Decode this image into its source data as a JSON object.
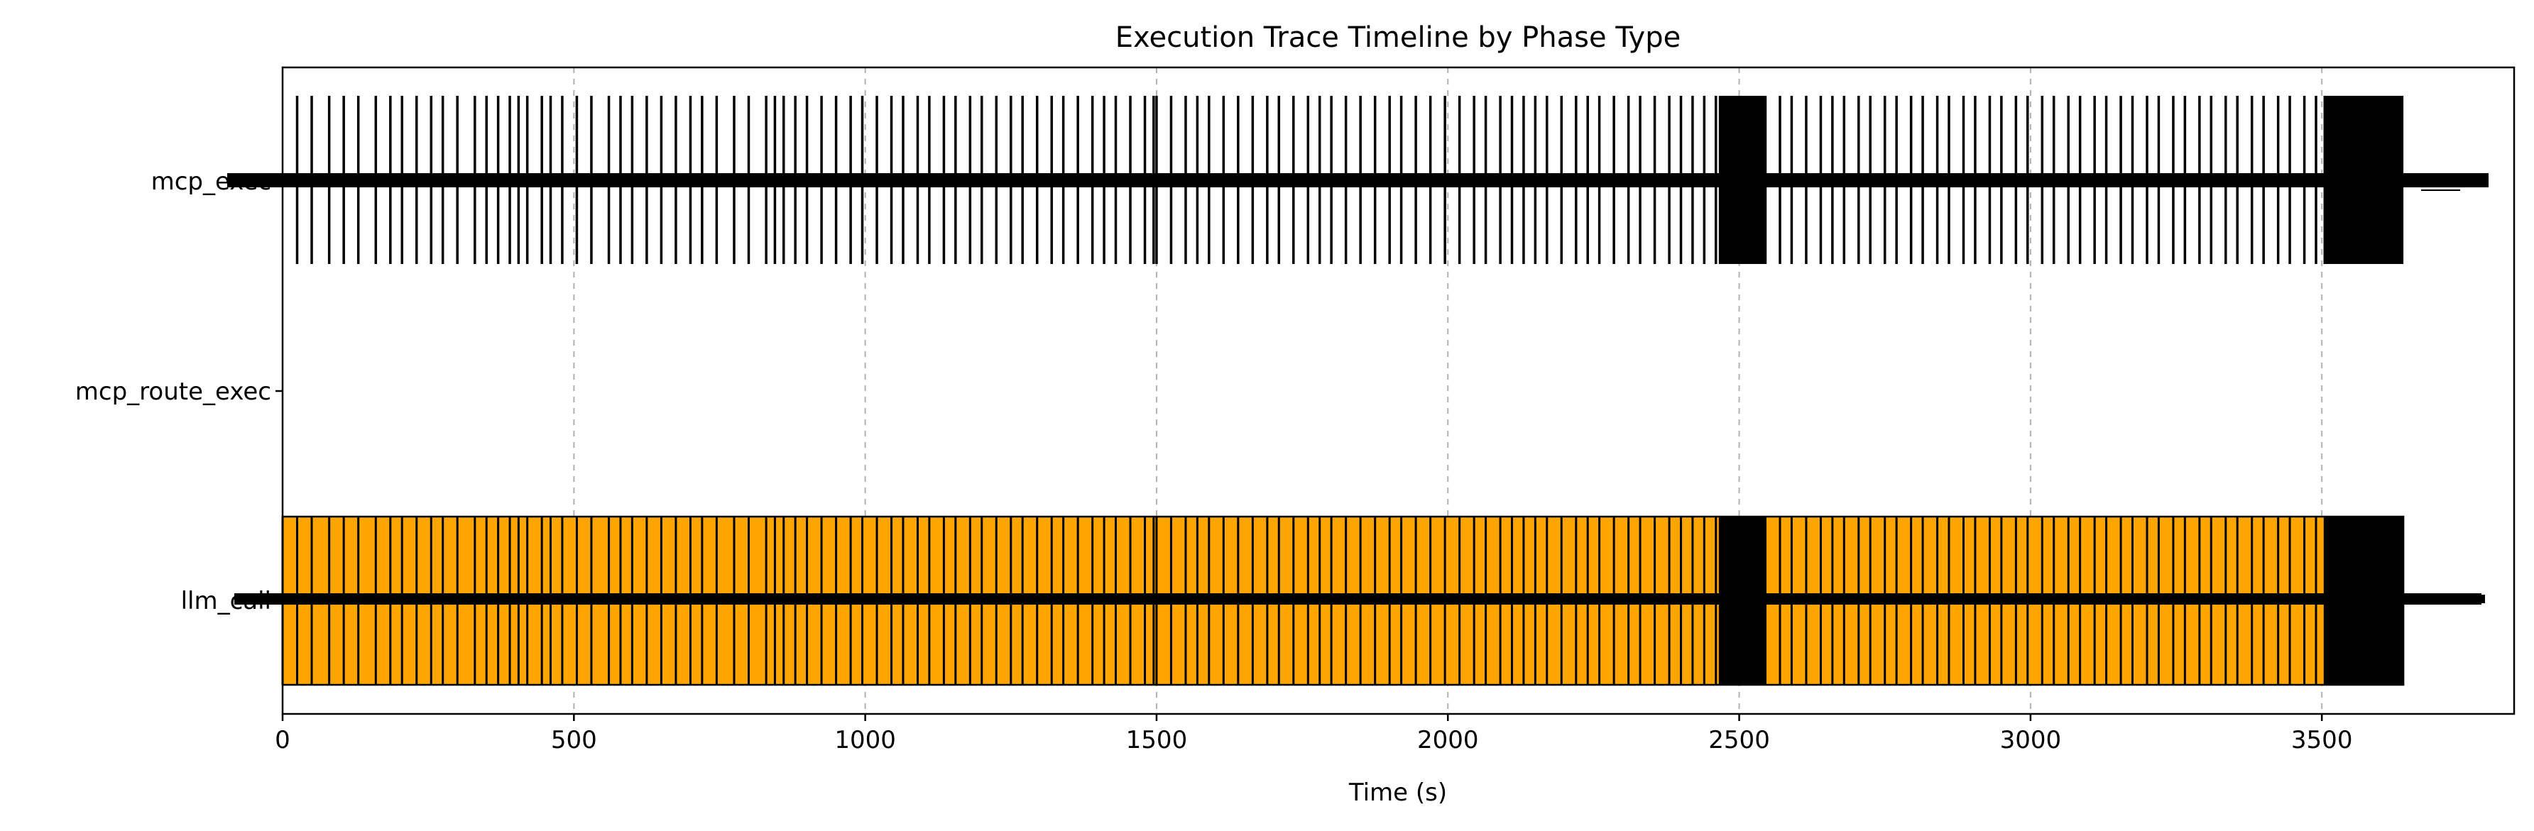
{
  "chart_data": {
    "type": "timeline",
    "title": "Execution Trace Timeline by Phase Type",
    "xlabel": "Time (s)",
    "ylabel": "",
    "xlim": [
      0,
      3830
    ],
    "x_ticks": [
      0,
      500,
      1000,
      1500,
      2000,
      2500,
      3000,
      3500
    ],
    "x_tick_labels": [
      "0",
      "500",
      "1000",
      "1500",
      "2000",
      "2500",
      "3000",
      "3500"
    ],
    "grid": {
      "x": true,
      "y": false,
      "style": "dashed"
    },
    "categories": [
      "mcp_exec",
      "mcp_route_exec",
      "llm_call"
    ],
    "category_tick_labels": [
      "mcp_exec",
      "mcp_route_exec",
      "llm_call"
    ],
    "series": [
      {
        "category": "mcp_exec",
        "color": "#000000",
        "starts": [
          25,
          50,
          80,
          105,
          130,
          160,
          185,
          205,
          230,
          255,
          275,
          300,
          330,
          350,
          370,
          390,
          405,
          420,
          445,
          460,
          480,
          505,
          530,
          560,
          580,
          600,
          625,
          650,
          675,
          700,
          720,
          745,
          775,
          800,
          830,
          845,
          860,
          880,
          900,
          925,
          950,
          975,
          995,
          1020,
          1045,
          1065,
          1090,
          1110,
          1135,
          1155,
          1180,
          1200,
          1225,
          1250,
          1270,
          1295,
          1320,
          1340,
          1365,
          1390,
          1410,
          1430,
          1455,
          1480,
          1495,
          1500,
          1525,
          1550,
          1570,
          1590,
          1615,
          1640,
          1665,
          1690,
          1710,
          1735,
          1760,
          1780,
          1800,
          1825,
          1850,
          1875,
          1900,
          1920,
          1945,
          1970,
          1995,
          2020,
          2045,
          2065,
          2090,
          2110,
          2130,
          2150,
          2170,
          2195,
          2220,
          2240,
          2260,
          2285,
          2310,
          2330,
          2355,
          2380,
          2400,
          2420,
          2440,
          2460,
          2480,
          2500,
          2520,
          2545,
          2570,
          2590,
          2615,
          2640,
          2660,
          2680,
          2705,
          2725,
          2750,
          2770,
          2795,
          2815,
          2840,
          2860,
          2885,
          2905,
          2930,
          2950,
          2975,
          2995,
          3020,
          3040,
          3065,
          3085,
          3110,
          3130,
          3155,
          3175,
          3200,
          3220,
          3245,
          3265,
          3290,
          3310,
          3335,
          3355,
          3380,
          3400,
          3425,
          3445,
          3470,
          3490,
          3505,
          3515,
          3525,
          3535,
          3545,
          3555,
          3565,
          3575,
          3585,
          3595,
          3605,
          3615,
          3625,
          3635
        ],
        "dense_blocks": [
          [
            2465,
            2545
          ],
          [
            3505,
            3640
          ]
        ],
        "row_extent": [
          25,
          3640
        ]
      },
      {
        "category": "mcp_route_exec",
        "color": "#000000",
        "starts": []
      },
      {
        "category": "llm_call",
        "color": "#FFA500",
        "edgecolor": "#000000",
        "extent": [
          0,
          3640
        ],
        "starts": [
          0,
          25,
          50,
          80,
          105,
          130,
          160,
          185,
          205,
          230,
          255,
          275,
          300,
          330,
          350,
          370,
          390,
          405,
          420,
          445,
          460,
          480,
          505,
          530,
          560,
          580,
          600,
          625,
          650,
          675,
          700,
          720,
          745,
          775,
          800,
          830,
          845,
          860,
          880,
          900,
          925,
          950,
          975,
          995,
          1020,
          1045,
          1065,
          1090,
          1110,
          1135,
          1155,
          1180,
          1200,
          1225,
          1250,
          1270,
          1295,
          1320,
          1340,
          1365,
          1390,
          1410,
          1430,
          1455,
          1480,
          1495,
          1500,
          1525,
          1550,
          1570,
          1590,
          1615,
          1640,
          1665,
          1690,
          1710,
          1735,
          1760,
          1780,
          1800,
          1825,
          1850,
          1875,
          1900,
          1920,
          1945,
          1970,
          1995,
          2020,
          2045,
          2065,
          2090,
          2110,
          2130,
          2150,
          2170,
          2195,
          2220,
          2240,
          2260,
          2285,
          2310,
          2330,
          2355,
          2380,
          2400,
          2420,
          2440,
          2460,
          2480,
          2500,
          2520,
          2545,
          2570,
          2590,
          2615,
          2640,
          2660,
          2680,
          2705,
          2725,
          2750,
          2770,
          2795,
          2815,
          2840,
          2860,
          2885,
          2905,
          2930,
          2950,
          2975,
          2995,
          3020,
          3040,
          3065,
          3085,
          3110,
          3130,
          3155,
          3175,
          3200,
          3220,
          3245,
          3265,
          3290,
          3310,
          3335,
          3355,
          3380,
          3400,
          3425,
          3445,
          3470,
          3490,
          3505
        ],
        "dense_blocks": [
          [
            2465,
            2545
          ],
          [
            3505,
            3640
          ]
        ]
      }
    ]
  }
}
